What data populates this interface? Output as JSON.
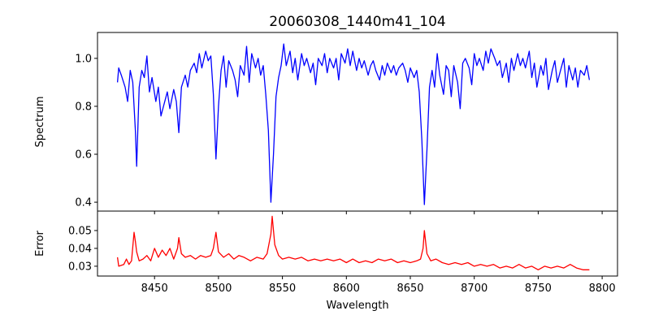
{
  "chart_data": [
    {
      "type": "line",
      "title": "20060308_1440m41_104",
      "xlabel": "",
      "ylabel": "Spectrum",
      "xlim": [
        8405.4,
        8812
      ],
      "ylim": [
        0.363,
        1.108
      ],
      "yticks": [
        0.4,
        0.6,
        0.8,
        1.0
      ],
      "ytick_labels": [
        "0.4",
        "0.6",
        "0.8",
        "1.0"
      ],
      "xticks": [
        8450,
        8500,
        8550,
        8600,
        8650,
        8700,
        8750,
        8800
      ],
      "color": "#0000ff",
      "points": [
        [
          8421,
          0.9
        ],
        [
          8422,
          0.96
        ],
        [
          8424,
          0.93
        ],
        [
          8427,
          0.88
        ],
        [
          8429,
          0.82
        ],
        [
          8431,
          0.95
        ],
        [
          8433,
          0.9
        ],
        [
          8435,
          0.7
        ],
        [
          8436,
          0.55
        ],
        [
          8438,
          0.88
        ],
        [
          8440,
          0.95
        ],
        [
          8442,
          0.92
        ],
        [
          8444,
          1.01
        ],
        [
          8446,
          0.86
        ],
        [
          8448,
          0.92
        ],
        [
          8451,
          0.82
        ],
        [
          8453,
          0.88
        ],
        [
          8455,
          0.76
        ],
        [
          8457,
          0.8
        ],
        [
          8460,
          0.86
        ],
        [
          8462,
          0.79
        ],
        [
          8465,
          0.87
        ],
        [
          8467,
          0.82
        ],
        [
          8469,
          0.69
        ],
        [
          8471,
          0.88
        ],
        [
          8474,
          0.93
        ],
        [
          8476,
          0.88
        ],
        [
          8478,
          0.95
        ],
        [
          8481,
          0.98
        ],
        [
          8483,
          0.94
        ],
        [
          8485,
          1.02
        ],
        [
          8487,
          0.96
        ],
        [
          8490,
          1.03
        ],
        [
          8492,
          0.99
        ],
        [
          8494,
          1.01
        ],
        [
          8496,
          0.85
        ],
        [
          8498,
          0.58
        ],
        [
          8500,
          0.8
        ],
        [
          8502,
          0.95
        ],
        [
          8504,
          1.01
        ],
        [
          8506,
          0.88
        ],
        [
          8508,
          0.99
        ],
        [
          8511,
          0.95
        ],
        [
          8513,
          0.91
        ],
        [
          8515,
          0.84
        ],
        [
          8517,
          0.97
        ],
        [
          8520,
          0.93
        ],
        [
          8522,
          1.05
        ],
        [
          8524,
          0.9
        ],
        [
          8526,
          1.02
        ],
        [
          8529,
          0.96
        ],
        [
          8531,
          1.0
        ],
        [
          8533,
          0.93
        ],
        [
          8535,
          0.97
        ],
        [
          8537,
          0.85
        ],
        [
          8539,
          0.7
        ],
        [
          8541,
          0.4
        ],
        [
          8543,
          0.6
        ],
        [
          8545,
          0.84
        ],
        [
          8547,
          0.92
        ],
        [
          8549,
          0.97
        ],
        [
          8551,
          1.06
        ],
        [
          8553,
          0.97
        ],
        [
          8556,
          1.03
        ],
        [
          8558,
          0.94
        ],
        [
          8560,
          1.0
        ],
        [
          8562,
          0.91
        ],
        [
          8565,
          1.02
        ],
        [
          8567,
          0.97
        ],
        [
          8569,
          1.0
        ],
        [
          8572,
          0.94
        ],
        [
          8574,
          0.98
        ],
        [
          8576,
          0.89
        ],
        [
          8578,
          1.0
        ],
        [
          8581,
          0.97
        ],
        [
          8583,
          1.02
        ],
        [
          8585,
          0.94
        ],
        [
          8587,
          1.0
        ],
        [
          8590,
          0.96
        ],
        [
          8592,
          1.0
        ],
        [
          8594,
          0.91
        ],
        [
          8596,
          1.02
        ],
        [
          8599,
          0.98
        ],
        [
          8601,
          1.04
        ],
        [
          8603,
          0.97
        ],
        [
          8605,
          1.03
        ],
        [
          8608,
          0.95
        ],
        [
          8610,
          1.0
        ],
        [
          8612,
          0.96
        ],
        [
          8614,
          0.99
        ],
        [
          8617,
          0.93
        ],
        [
          8619,
          0.97
        ],
        [
          8621,
          0.99
        ],
        [
          8623,
          0.95
        ],
        [
          8626,
          0.91
        ],
        [
          8628,
          0.97
        ],
        [
          8630,
          0.93
        ],
        [
          8632,
          0.98
        ],
        [
          8635,
          0.94
        ],
        [
          8637,
          0.97
        ],
        [
          8639,
          0.93
        ],
        [
          8641,
          0.96
        ],
        [
          8644,
          0.98
        ],
        [
          8646,
          0.95
        ],
        [
          8648,
          0.9
        ],
        [
          8650,
          0.96
        ],
        [
          8653,
          0.92
        ],
        [
          8655,
          0.95
        ],
        [
          8657,
          0.86
        ],
        [
          8659,
          0.66
        ],
        [
          8661,
          0.39
        ],
        [
          8663,
          0.62
        ],
        [
          8665,
          0.88
        ],
        [
          8667,
          0.95
        ],
        [
          8669,
          0.88
        ],
        [
          8671,
          1.02
        ],
        [
          8673,
          0.93
        ],
        [
          8676,
          0.85
        ],
        [
          8678,
          0.97
        ],
        [
          8680,
          0.95
        ],
        [
          8682,
          0.84
        ],
        [
          8684,
          0.97
        ],
        [
          8687,
          0.9
        ],
        [
          8689,
          0.79
        ],
        [
          8691,
          0.98
        ],
        [
          8693,
          1.0
        ],
        [
          8696,
          0.96
        ],
        [
          8698,
          0.89
        ],
        [
          8700,
          1.02
        ],
        [
          8702,
          0.97
        ],
        [
          8704,
          1.0
        ],
        [
          8707,
          0.95
        ],
        [
          8709,
          1.03
        ],
        [
          8711,
          0.98
        ],
        [
          8713,
          1.04
        ],
        [
          8716,
          1.0
        ],
        [
          8718,
          0.97
        ],
        [
          8720,
          0.99
        ],
        [
          8722,
          0.92
        ],
        [
          8725,
          0.98
        ],
        [
          8727,
          0.9
        ],
        [
          8729,
          1.0
        ],
        [
          8731,
          0.95
        ],
        [
          8734,
          1.02
        ],
        [
          8736,
          0.97
        ],
        [
          8738,
          1.0
        ],
        [
          8740,
          0.96
        ],
        [
          8743,
          1.03
        ],
        [
          8745,
          0.92
        ],
        [
          8747,
          0.98
        ],
        [
          8749,
          0.88
        ],
        [
          8752,
          0.97
        ],
        [
          8754,
          0.93
        ],
        [
          8756,
          1.0
        ],
        [
          8758,
          0.87
        ],
        [
          8761,
          0.95
        ],
        [
          8763,
          0.99
        ],
        [
          8765,
          0.9
        ],
        [
          8768,
          0.96
        ],
        [
          8770,
          1.0
        ],
        [
          8772,
          0.88
        ],
        [
          8774,
          0.97
        ],
        [
          8777,
          0.91
        ],
        [
          8779,
          0.96
        ],
        [
          8781,
          0.88
        ],
        [
          8783,
          0.95
        ],
        [
          8786,
          0.93
        ],
        [
          8788,
          0.97
        ],
        [
          8790,
          0.91
        ]
      ]
    },
    {
      "type": "line",
      "title": "",
      "xlabel": "Wavelength",
      "ylabel": "Error",
      "xlim": [
        8405.4,
        8812
      ],
      "ylim": [
        0.0245,
        0.0609
      ],
      "yticks": [
        0.03,
        0.04,
        0.05
      ],
      "ytick_labels": [
        "0.03",
        "0.04",
        "0.05"
      ],
      "xticks": [
        8450,
        8500,
        8550,
        8600,
        8650,
        8700,
        8750,
        8800
      ],
      "xtick_labels": [
        "8450",
        "8500",
        "8550",
        "8600",
        "8650",
        "8700",
        "8750",
        "8800"
      ],
      "color": "#ff0000",
      "points": [
        [
          8421,
          0.035
        ],
        [
          8422,
          0.03
        ],
        [
          8426,
          0.031
        ],
        [
          8428,
          0.034
        ],
        [
          8430,
          0.031
        ],
        [
          8432,
          0.033
        ],
        [
          8434,
          0.049
        ],
        [
          8435,
          0.044
        ],
        [
          8436,
          0.038
        ],
        [
          8438,
          0.033
        ],
        [
          8441,
          0.034
        ],
        [
          8444,
          0.036
        ],
        [
          8447,
          0.033
        ],
        [
          8450,
          0.04
        ],
        [
          8453,
          0.035
        ],
        [
          8456,
          0.039
        ],
        [
          8459,
          0.036
        ],
        [
          8462,
          0.04
        ],
        [
          8465,
          0.034
        ],
        [
          8468,
          0.04
        ],
        [
          8469,
          0.046
        ],
        [
          8471,
          0.037
        ],
        [
          8474,
          0.035
        ],
        [
          8478,
          0.036
        ],
        [
          8482,
          0.034
        ],
        [
          8486,
          0.036
        ],
        [
          8490,
          0.035
        ],
        [
          8494,
          0.036
        ],
        [
          8496,
          0.04
        ],
        [
          8498,
          0.049
        ],
        [
          8500,
          0.038
        ],
        [
          8504,
          0.035
        ],
        [
          8508,
          0.037
        ],
        [
          8512,
          0.034
        ],
        [
          8516,
          0.036
        ],
        [
          8520,
          0.035
        ],
        [
          8525,
          0.033
        ],
        [
          8530,
          0.035
        ],
        [
          8535,
          0.034
        ],
        [
          8538,
          0.037
        ],
        [
          8541,
          0.048
        ],
        [
          8542,
          0.058
        ],
        [
          8544,
          0.042
        ],
        [
          8547,
          0.036
        ],
        [
          8550,
          0.034
        ],
        [
          8555,
          0.035
        ],
        [
          8560,
          0.034
        ],
        [
          8565,
          0.035
        ],
        [
          8570,
          0.033
        ],
        [
          8575,
          0.034
        ],
        [
          8580,
          0.033
        ],
        [
          8585,
          0.034
        ],
        [
          8590,
          0.033
        ],
        [
          8595,
          0.034
        ],
        [
          8600,
          0.032
        ],
        [
          8605,
          0.034
        ],
        [
          8610,
          0.032
        ],
        [
          8615,
          0.033
        ],
        [
          8620,
          0.032
        ],
        [
          8625,
          0.034
        ],
        [
          8630,
          0.033
        ],
        [
          8635,
          0.034
        ],
        [
          8640,
          0.032
        ],
        [
          8645,
          0.033
        ],
        [
          8650,
          0.032
        ],
        [
          8655,
          0.033
        ],
        [
          8658,
          0.034
        ],
        [
          8660,
          0.04
        ],
        [
          8661,
          0.05
        ],
        [
          8663,
          0.037
        ],
        [
          8666,
          0.033
        ],
        [
          8670,
          0.034
        ],
        [
          8675,
          0.032
        ],
        [
          8680,
          0.031
        ],
        [
          8685,
          0.032
        ],
        [
          8690,
          0.031
        ],
        [
          8695,
          0.032
        ],
        [
          8700,
          0.03
        ],
        [
          8705,
          0.031
        ],
        [
          8710,
          0.03
        ],
        [
          8715,
          0.031
        ],
        [
          8720,
          0.029
        ],
        [
          8725,
          0.03
        ],
        [
          8730,
          0.029
        ],
        [
          8735,
          0.031
        ],
        [
          8740,
          0.029
        ],
        [
          8745,
          0.03
        ],
        [
          8750,
          0.028
        ],
        [
          8755,
          0.03
        ],
        [
          8760,
          0.029
        ],
        [
          8765,
          0.03
        ],
        [
          8770,
          0.029
        ],
        [
          8775,
          0.031
        ],
        [
          8780,
          0.029
        ],
        [
          8785,
          0.028
        ],
        [
          8790,
          0.028
        ]
      ]
    }
  ]
}
